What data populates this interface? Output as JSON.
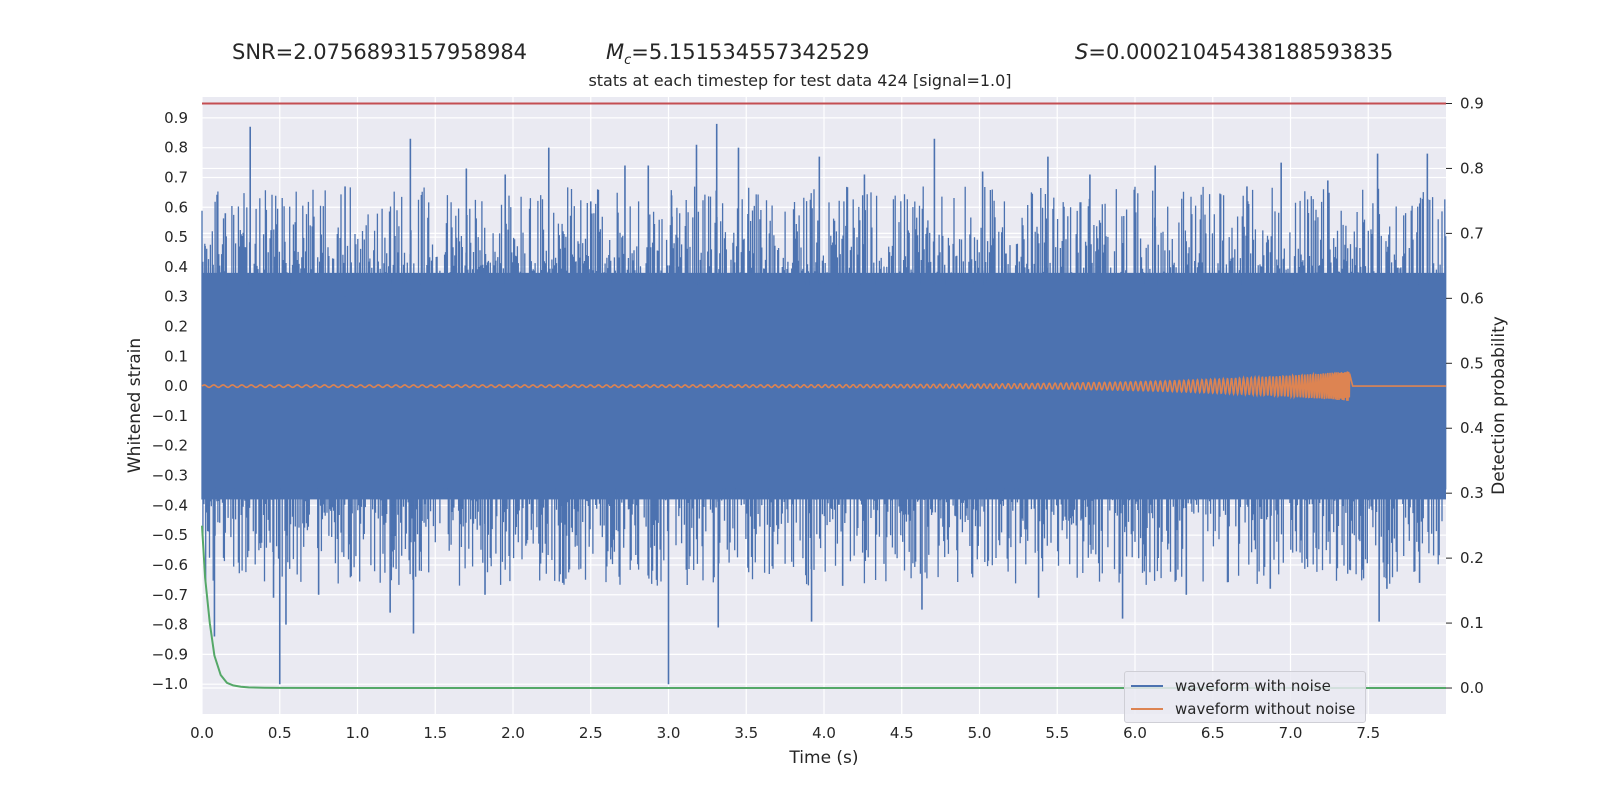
{
  "header": {
    "snr": "SNR=2.0756893157958984",
    "mc_symbol": "M",
    "mc_sub": "c",
    "mc_value": "=5.151534557342529",
    "s_symbol": "S",
    "s_value": "=0.00021045438188593835"
  },
  "colors": {
    "noisy": "#4c72b0",
    "clean": "#dd8452",
    "prob": "#55a868",
    "threshold": "#c44e52",
    "plot_bg": "#eaeaf2",
    "grid": "#ffffff"
  },
  "chart_data": {
    "type": "line",
    "title": "stats at each timestep for test data 424 [signal=1.0]",
    "xlabel": "Time (s)",
    "ylabel_left": "Whitened strain",
    "ylabel_right": "Detection probability",
    "xlim": [
      0.0,
      8.0
    ],
    "ylim_left": [
      -1.1,
      0.97
    ],
    "ylim_right": [
      -0.04,
      0.91
    ],
    "x_ticks": [
      "0.0",
      "0.5",
      "1.0",
      "1.5",
      "2.0",
      "2.5",
      "3.0",
      "3.5",
      "4.0",
      "4.5",
      "5.0",
      "5.5",
      "6.0",
      "6.5",
      "7.0",
      "7.5"
    ],
    "y_ticks_left": [
      "0.9",
      "0.8",
      "0.7",
      "0.6",
      "0.5",
      "0.4",
      "0.3",
      "0.2",
      "0.1",
      "0.0",
      "−0.1",
      "−0.2",
      "−0.3",
      "−0.4",
      "−0.5",
      "−0.6",
      "−0.7",
      "−0.8",
      "−0.9",
      "−1.0"
    ],
    "y_ticks_right": [
      "0.9",
      "0.8",
      "0.7",
      "0.6",
      "0.5",
      "0.4",
      "0.3",
      "0.2",
      "0.1",
      "0.0"
    ],
    "legend_position": "bottom-right",
    "series": [
      {
        "name": "waveform with noise",
        "axis": "left",
        "band": [
          -0.38,
          0.38
        ],
        "positive_spikes": [
          [
            0.02,
            0.47
          ],
          [
            0.15,
            0.58
          ],
          [
            0.31,
            0.87
          ],
          [
            0.6,
            0.55
          ],
          [
            0.92,
            0.67
          ],
          [
            1.34,
            0.83
          ],
          [
            1.7,
            0.73
          ],
          [
            1.95,
            0.71
          ],
          [
            2.23,
            0.8
          ],
          [
            2.5,
            0.62
          ],
          [
            2.72,
            0.74
          ],
          [
            2.87,
            0.74
          ],
          [
            3.02,
            0.64
          ],
          [
            3.18,
            0.81
          ],
          [
            3.31,
            0.88
          ],
          [
            3.45,
            0.8
          ],
          [
            3.97,
            0.77
          ],
          [
            4.26,
            0.71
          ],
          [
            4.71,
            0.83
          ],
          [
            5.02,
            0.72
          ],
          [
            5.44,
            0.77
          ],
          [
            5.71,
            0.71
          ],
          [
            6.13,
            0.74
          ],
          [
            6.72,
            0.67
          ],
          [
            6.94,
            0.75
          ],
          [
            7.24,
            0.69
          ],
          [
            7.56,
            0.78
          ],
          [
            7.88,
            0.78
          ]
        ],
        "negative_spikes": [
          [
            0.08,
            -0.84
          ],
          [
            0.46,
            -0.71
          ],
          [
            0.5,
            -1.0
          ],
          [
            0.54,
            -0.8
          ],
          [
            0.75,
            -0.7
          ],
          [
            1.21,
            -0.76
          ],
          [
            1.36,
            -0.83
          ],
          [
            1.82,
            -0.7
          ],
          [
            2.32,
            -0.66
          ],
          [
            3.0,
            -1.0
          ],
          [
            3.32,
            -0.81
          ],
          [
            3.92,
            -0.79
          ],
          [
            4.12,
            -0.67
          ],
          [
            4.63,
            -0.75
          ],
          [
            5.38,
            -0.71
          ],
          [
            5.92,
            -0.78
          ],
          [
            6.33,
            -0.7
          ],
          [
            6.87,
            -0.68
          ],
          [
            7.57,
            -0.79
          ],
          [
            7.62,
            -0.68
          ],
          [
            7.83,
            -0.66
          ]
        ]
      },
      {
        "name": "waveform without noise",
        "axis": "left",
        "chirp": {
          "start": 0.0,
          "merger": 7.38,
          "amp_start": 0.004,
          "amp_peak": 0.05
        }
      },
      {
        "name": "detection probability",
        "axis": "right",
        "x": [
          0.0,
          0.02,
          0.05,
          0.08,
          0.12,
          0.16,
          0.2,
          0.25,
          0.3,
          0.4,
          0.5,
          1.0,
          8.0
        ],
        "y": [
          0.25,
          0.17,
          0.1,
          0.05,
          0.02,
          0.008,
          0.004,
          0.002,
          0.001,
          0.0005,
          0.0002,
          0.0,
          0.0
        ]
      },
      {
        "name": "threshold",
        "axis": "right",
        "y": 0.9
      }
    ]
  }
}
